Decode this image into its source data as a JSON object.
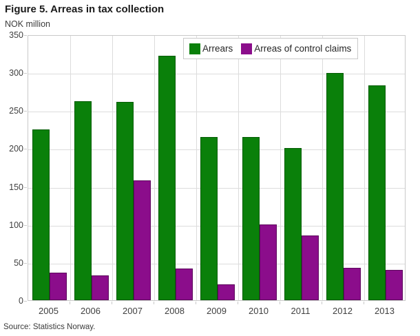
{
  "figure": {
    "title": "Figure 5. Arreas in tax collection",
    "unit_label": "NOK million",
    "source": "Source: Statistics Norway."
  },
  "colors": {
    "arrears_green": "#0a800a",
    "control_claims_purple": "#8b0d8b",
    "grid": "#dcdcdc",
    "plot_border": "#c9c9c9"
  },
  "chart_data": {
    "type": "bar",
    "title": "Figure 5. Arreas in tax collection",
    "ylabel": "NOK million",
    "xlabel": "",
    "categories": [
      "2005",
      "2006",
      "2007",
      "2008",
      "2009",
      "2010",
      "2011",
      "2012",
      "2013"
    ],
    "series": [
      {
        "name": "Arrears",
        "color": "#0a800a",
        "values": [
          225,
          262,
          261,
          322,
          215,
          215,
          200,
          299,
          283
        ]
      },
      {
        "name": "Arreas of control claims",
        "color": "#8b0d8b",
        "values": [
          36,
          33,
          158,
          42,
          21,
          100,
          85,
          43,
          40
        ]
      }
    ],
    "ylim": [
      0,
      350
    ],
    "ytick_step": 50,
    "grid": true,
    "legend_position": "top-center"
  }
}
